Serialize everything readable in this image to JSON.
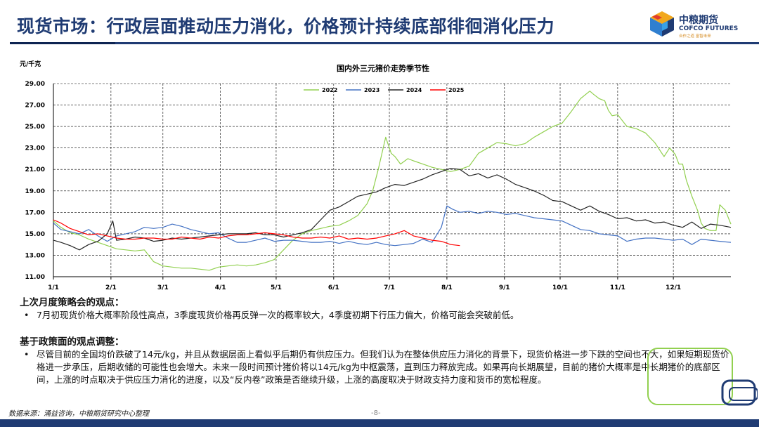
{
  "header": {
    "title": "现货市场：行政层面推动压力消化，价格预计持续底部徘徊消化压力",
    "logo_cn": "中粮期货",
    "logo_en": "COFCO FUTURES",
    "logo_tag": "合作之道 富智未来"
  },
  "chart_data": {
    "type": "line",
    "title": "国内外三元猪价走势季节性",
    "ylabel": "元/千克",
    "ylim": [
      11,
      29
    ],
    "yticks": [
      "29.00",
      "27.00",
      "25.00",
      "23.00",
      "21.00",
      "19.00",
      "17.00",
      "15.00",
      "13.00",
      "11.00"
    ],
    "xlim": [
      1,
      366
    ],
    "xtick_labels": [
      "1/1",
      "2/1",
      "3/1",
      "4/1",
      "5/1",
      "6/1",
      "7/1",
      "8/1",
      "9/1",
      "10/1",
      "11/1",
      "12/1"
    ],
    "xtick_days": [
      1,
      32,
      60,
      91,
      121,
      152,
      182,
      213,
      244,
      274,
      305,
      335
    ],
    "gridlines": "dashed",
    "legend_position": "top",
    "series": [
      {
        "name": "2022",
        "color": "#92d050",
        "x": [
          1,
          5,
          10,
          15,
          20,
          25,
          30,
          35,
          40,
          45,
          50,
          55,
          60,
          65,
          70,
          75,
          80,
          85,
          90,
          95,
          100,
          105,
          110,
          115,
          120,
          125,
          130,
          135,
          140,
          145,
          150,
          155,
          160,
          165,
          170,
          173,
          176,
          180,
          183,
          185,
          188,
          192,
          195,
          200,
          205,
          210,
          215,
          220,
          225,
          230,
          235,
          240,
          245,
          250,
          255,
          260,
          265,
          270,
          275,
          280,
          285,
          290,
          292,
          295,
          298,
          300,
          302,
          305,
          310,
          315,
          320,
          325,
          330,
          333,
          336,
          338,
          340,
          342,
          345,
          348,
          350,
          352,
          355,
          358,
          360,
          363,
          366
        ],
        "values": [
          16.2,
          15.6,
          15.1,
          14.9,
          14.5,
          14.2,
          13.9,
          13.6,
          13.5,
          13.4,
          13.5,
          12.4,
          12.0,
          11.9,
          11.8,
          11.8,
          11.7,
          11.6,
          11.9,
          12.0,
          12.1,
          12.0,
          12.1,
          12.3,
          12.6,
          13.5,
          14.4,
          15.0,
          15.3,
          15.5,
          15.7,
          15.8,
          16.2,
          16.7,
          17.8,
          19.0,
          21.0,
          24.0,
          22.5,
          22.2,
          21.5,
          22.0,
          21.8,
          21.5,
          21.2,
          21.0,
          20.8,
          21.0,
          21.3,
          22.5,
          23.0,
          23.5,
          23.4,
          23.2,
          23.4,
          24.0,
          24.5,
          25.0,
          25.3,
          26.4,
          27.6,
          28.3,
          28.0,
          27.6,
          27.4,
          26.5,
          26.0,
          26.1,
          25.0,
          24.8,
          24.4,
          23.5,
          22.2,
          23.0,
          22.4,
          21.5,
          21.5,
          20.0,
          18.5,
          17.2,
          16.0,
          15.5,
          15.3,
          15.3,
          17.7,
          17.2,
          15.9
        ]
      },
      {
        "name": "2023",
        "color": "#4472c4",
        "x": [
          1,
          5,
          10,
          15,
          20,
          25,
          30,
          35,
          40,
          45,
          50,
          55,
          60,
          65,
          70,
          75,
          80,
          85,
          90,
          95,
          100,
          105,
          110,
          115,
          120,
          125,
          130,
          135,
          140,
          145,
          150,
          155,
          160,
          165,
          170,
          175,
          180,
          185,
          190,
          195,
          200,
          205,
          210,
          213,
          216,
          220,
          225,
          230,
          235,
          240,
          245,
          250,
          255,
          260,
          265,
          270,
          275,
          280,
          285,
          290,
          295,
          300,
          305,
          310,
          315,
          320,
          325,
          330,
          335,
          340,
          345,
          350,
          355,
          360,
          366
        ],
        "values": [
          16.0,
          15.4,
          15.2,
          15.0,
          15.4,
          14.8,
          14.3,
          14.8,
          15.0,
          15.2,
          15.6,
          15.5,
          15.6,
          15.9,
          15.7,
          15.4,
          15.2,
          15.0,
          15.1,
          14.6,
          14.2,
          14.2,
          14.4,
          14.6,
          14.3,
          14.4,
          14.4,
          14.3,
          14.2,
          14.2,
          14.3,
          14.1,
          14.3,
          14.1,
          14.0,
          14.2,
          14.0,
          13.9,
          14.0,
          14.1,
          14.5,
          14.2,
          15.6,
          17.6,
          17.3,
          17.0,
          17.1,
          16.9,
          17.1,
          17.0,
          16.8,
          16.9,
          16.7,
          16.5,
          16.4,
          16.3,
          16.2,
          15.8,
          15.4,
          15.3,
          15.0,
          14.9,
          14.8,
          14.3,
          14.5,
          14.6,
          14.6,
          14.5,
          14.4,
          14.5,
          14.0,
          14.5,
          14.4,
          14.3,
          14.2
        ]
      },
      {
        "name": "2024",
        "color": "#262626",
        "x": [
          1,
          5,
          10,
          15,
          20,
          25,
          30,
          33,
          35,
          40,
          45,
          50,
          55,
          60,
          65,
          70,
          75,
          80,
          85,
          90,
          95,
          100,
          105,
          110,
          115,
          120,
          125,
          130,
          135,
          140,
          145,
          150,
          155,
          160,
          165,
          170,
          175,
          180,
          185,
          190,
          195,
          200,
          205,
          210,
          215,
          220,
          225,
          230,
          235,
          240,
          245,
          250,
          255,
          260,
          265,
          270,
          275,
          280,
          285,
          290,
          295,
          300,
          305,
          310,
          315,
          320,
          325,
          330,
          335,
          340,
          345,
          350,
          355,
          360,
          366
        ],
        "values": [
          14.4,
          14.2,
          13.9,
          13.5,
          14.0,
          14.3,
          15.0,
          16.2,
          14.4,
          14.5,
          14.7,
          14.6,
          14.3,
          14.4,
          14.6,
          14.5,
          14.6,
          14.7,
          14.8,
          14.9,
          15.0,
          15.0,
          15.0,
          15.1,
          14.9,
          14.9,
          14.7,
          14.9,
          15.1,
          15.4,
          16.3,
          17.2,
          17.5,
          18.0,
          18.5,
          18.7,
          18.9,
          19.3,
          19.6,
          19.5,
          19.8,
          20.1,
          20.5,
          20.8,
          21.1,
          21.0,
          20.4,
          20.6,
          20.2,
          20.5,
          20.1,
          19.6,
          19.3,
          19.0,
          18.6,
          18.1,
          18.0,
          17.6,
          17.2,
          17.6,
          17.1,
          16.8,
          16.4,
          16.5,
          16.2,
          16.3,
          16.0,
          16.1,
          15.8,
          15.6,
          16.1,
          15.5,
          15.9,
          15.8,
          15.6
        ]
      },
      {
        "name": "2025",
        "color": "#ff0000",
        "x": [
          1,
          5,
          10,
          15,
          20,
          25,
          30,
          35,
          40,
          45,
          50,
          55,
          60,
          65,
          70,
          75,
          80,
          85,
          90,
          95,
          100,
          105,
          110,
          115,
          120,
          125,
          130,
          135,
          140,
          145,
          150,
          155,
          160,
          165,
          170,
          175,
          180,
          185,
          190,
          195,
          200,
          205,
          210,
          215,
          220
        ],
        "values": [
          16.3,
          16.0,
          15.5,
          15.2,
          14.9,
          15.0,
          14.8,
          14.6,
          14.5,
          14.5,
          14.6,
          14.6,
          14.5,
          14.5,
          14.7,
          14.6,
          14.5,
          14.7,
          14.6,
          14.8,
          14.9,
          14.9,
          15.0,
          15.1,
          15.0,
          14.9,
          14.7,
          14.6,
          14.6,
          14.7,
          14.6,
          14.8,
          14.5,
          14.6,
          14.5,
          14.6,
          14.8,
          15.0,
          15.3,
          14.8,
          14.6,
          14.4,
          14.3,
          14.0,
          13.9
        ]
      }
    ]
  },
  "sections": {
    "previous_title": "上次月度策略会的观点：",
    "previous_bullet_symbol": "•",
    "previous_bullet": "7月初现货价格大概率阶段性高点，3季度现货价格再反弹一次的概率较大，4季度初期下行压力偏大，价格可能会突破前低。",
    "policy_title": "基于政策面的观点调整：",
    "policy_bullet_symbol": "•",
    "policy_bullet": "尽管目前的全国均价跌破了14元/kg，并且从数据层面上看似乎后期仍有供应压力。但我们认为在整体供应压力消化的背景下，现货价格进一步下跌的空间也不大，如果短期现货价格进一步承压，后期收储的可能性也会增大。未来一段时间预计猪价将以14元/kg为中枢震荡，直到压力释放完成。如果再向长期展望，目前的猪价大概率是中长期猪价的底部区间，上涨的时点取决于供应压力消化的进度，以及“反内卷”政策是否继续升级，上涨的高度取决于财政支持力度和货币的宽松程度。"
  },
  "footer": {
    "source": "数据来源：涌益咨询，中粮期货研究中心整理",
    "page": "-8-"
  }
}
